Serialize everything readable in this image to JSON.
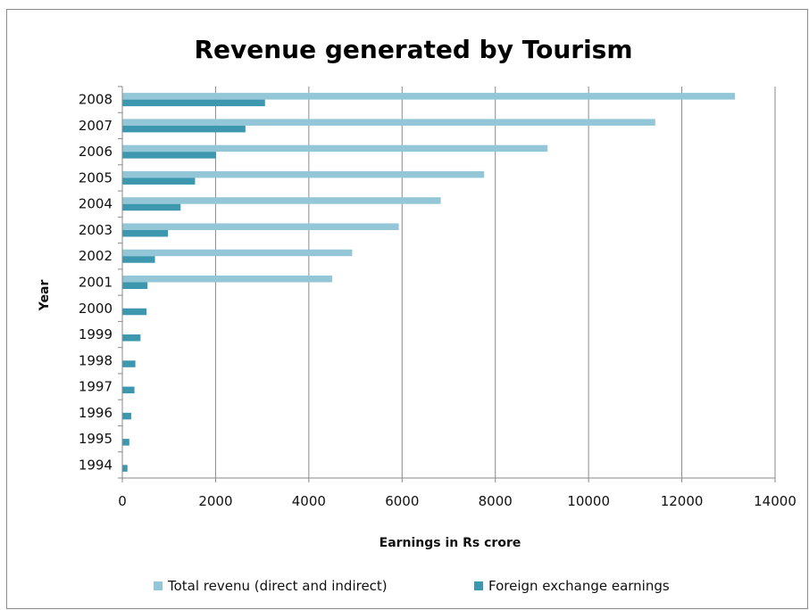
{
  "chart_data": {
    "type": "bar",
    "orientation": "horizontal",
    "title": "Revenue generated by Tourism",
    "xlabel": "Earnings in Rs crore",
    "ylabel": "Year",
    "xlim": [
      0,
      14000
    ],
    "xticks": [
      0,
      2000,
      4000,
      6000,
      8000,
      10000,
      12000,
      14000
    ],
    "xtick_labels": [
      "0",
      "2000",
      "4000",
      "6000",
      "8000",
      "10000",
      "12000",
      "14000"
    ],
    "grid": "vertical major gridlines",
    "legend_position": "bottom",
    "categories": [
      "1994",
      "1995",
      "1996",
      "1997",
      "1998",
      "1999",
      "2000",
      "2001",
      "2002",
      "2003",
      "2004",
      "2005",
      "2006",
      "2007",
      "2008"
    ],
    "series": [
      {
        "name": "Total revenu (direct and indirect)",
        "color": "#93c6d6",
        "values": [
          null,
          null,
          null,
          null,
          null,
          null,
          null,
          4500,
          4930,
          5930,
          6830,
          7760,
          9120,
          11430,
          13140
        ]
      },
      {
        "name": "Foreign exchange earnings",
        "color": "#3d97ae",
        "values": [
          110,
          150,
          190,
          260,
          280,
          390,
          520,
          540,
          700,
          980,
          1250,
          1560,
          2010,
          2640,
          3060
        ]
      }
    ]
  }
}
